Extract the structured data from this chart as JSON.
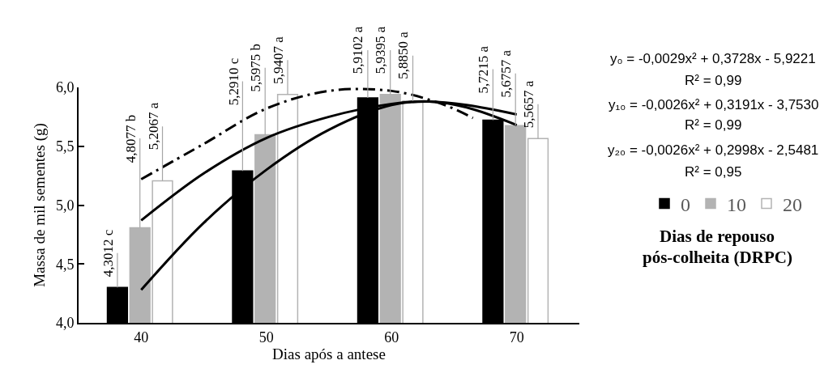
{
  "chart_data": {
    "type": "bar",
    "xlabel": "Dias após a antese",
    "ylabel": "Massa de mil sementes (g)",
    "legend_title": "Dias de repouso pós-colheita (DRPC)",
    "x": [
      40,
      50,
      60,
      70
    ],
    "xlim": [
      35,
      75
    ],
    "xticks": [
      40,
      50,
      60,
      70
    ],
    "ylim": [
      4.0,
      6.0
    ],
    "yticks": [
      {
        "value": 4.0,
        "label": "4,0"
      },
      {
        "value": 4.5,
        "label": "4,5"
      },
      {
        "value": 5.0,
        "label": "5,0"
      },
      {
        "value": 5.5,
        "label": "5,5"
      },
      {
        "value": 6.0,
        "label": "6,0"
      }
    ],
    "grid": false,
    "legend": "right",
    "series": [
      {
        "name": "0",
        "color": "#000000",
        "values": [
          4.3012,
          5.291,
          5.9102,
          5.7215
        ],
        "value_labels": [
          "4,3012 c",
          "5,2910 c",
          "5,9102 a",
          "5,7215 a"
        ]
      },
      {
        "name": "10",
        "color": "#b3b3b3",
        "values": [
          4.8077,
          5.5975,
          5.9395,
          5.6757
        ],
        "value_labels": [
          "4,8077 b",
          "5,5975 b",
          "5,9395 a",
          "5,6757 a"
        ]
      },
      {
        "name": "20",
        "color": "#ffffff",
        "values": [
          5.2067,
          5.9407,
          5.885,
          5.5657
        ],
        "value_labels": [
          "5,2067 a",
          "5,9407 a",
          "5,8850 a",
          "5,5657 a"
        ]
      },
      {
        "type": "line",
        "color": "#000000",
        "line_style": "solid",
        "x": [
          40,
          45,
          50,
          55,
          60,
          63,
          66,
          70
        ],
        "values": [
          4.28,
          4.85,
          5.3,
          5.64,
          5.85,
          5.88,
          5.83,
          5.68
        ]
      },
      {
        "type": "line",
        "color": "#000000",
        "line_style": "solid",
        "x": [
          40,
          45,
          50,
          55,
          60,
          63,
          66,
          70
        ],
        "values": [
          4.87,
          5.27,
          5.57,
          5.75,
          5.86,
          5.88,
          5.85,
          5.77
        ]
      },
      {
        "type": "line",
        "color": "#000000",
        "line_style": "dashed",
        "x": [
          40,
          45,
          50,
          55,
          60,
          64,
          66.5
        ],
        "values": [
          5.22,
          5.52,
          5.82,
          5.97,
          5.97,
          5.86,
          5.74
        ]
      }
    ],
    "annotations": [
      "y₀ = -0,0029x² + 0,3728x - 5,9221",
      "R² = 0,99",
      "y₁₀ = -0,0026x² + 0,3191x - 3,7530",
      "R² = 0,99",
      "y₂₀ = -0,0026x² + 0,2998x - 2,5481",
      "R² = 0,95"
    ]
  }
}
